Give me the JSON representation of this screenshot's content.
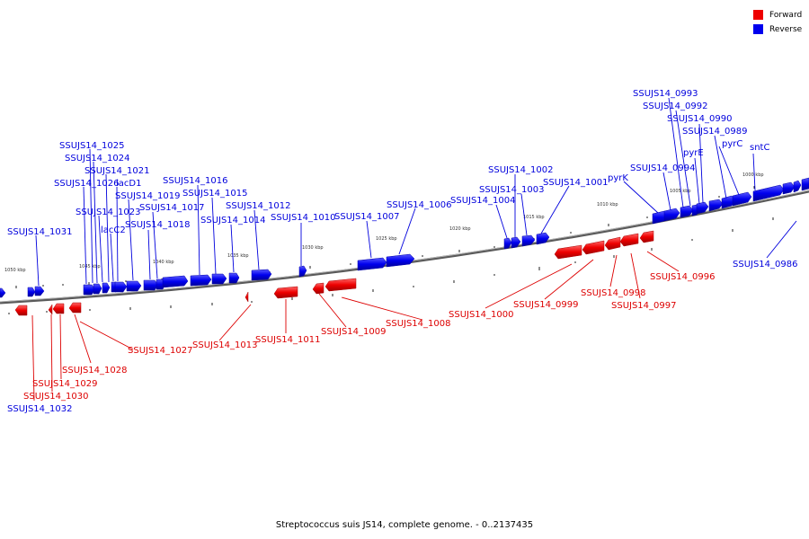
{
  "caption": "Streptococcus suis JS14, complete genome. - 0..2137435",
  "legend": [
    {
      "label": "Forward",
      "color": "#ee0000"
    },
    {
      "label": "Reverse",
      "color": "#0000ee"
    }
  ],
  "colors": {
    "forward": "#ee0000",
    "reverse": "#0000ee",
    "backbone": "#777777"
  },
  "scale_labels": [
    "1050 kbp",
    "1045 kbp",
    "1040 kbp",
    "1035 kbp",
    "1030 kbp",
    "1025 kbp",
    "1020 kbp",
    "1015 kbp",
    "1010 kbp",
    "1005 kbp",
    "1000 kbp"
  ],
  "reverse_labels": [
    "SSUJS14_1031",
    "SSUJS14_1026",
    "SSUJS14_1025",
    "SSUJS14_1024",
    "SSUJS14_1023",
    "SSUJS14_1021",
    "lacD1",
    "lacC2",
    "SSUJS14_1019",
    "SSUJS14_1018",
    "SSUJS14_1017",
    "SSUJS14_1016",
    "SSUJS14_1015",
    "SSUJS14_1014",
    "SSUJS14_1012",
    "SSUJS14_1010",
    "SSUJS14_1007",
    "SSUJS14_1006",
    "SSUJS14_1004",
    "SSUJS14_1003",
    "SSUJS14_1002",
    "SSUJS14_1001",
    "pyrK",
    "SSUJS14_0994",
    "SSUJS14_0993",
    "SSUJS14_0992",
    "SSUJS14_0990",
    "SSUJS14_0989",
    "pyrE",
    "pyrC",
    "sntC",
    "SSUJS14_0986"
  ],
  "forward_labels": [
    "SSUJS14_1032",
    "SSUJS14_1030",
    "SSUJS14_1029",
    "SSUJS14_1028",
    "SSUJS14_1027",
    "SSUJS14_1013",
    "SSUJS14_1011",
    "SSUJS14_1009",
    "SSUJS14_1008",
    "SSUJS14_1000",
    "SSUJS14_0999",
    "SSUJS14_0998",
    "SSUJS14_0997",
    "SSUJS14_0996"
  ]
}
